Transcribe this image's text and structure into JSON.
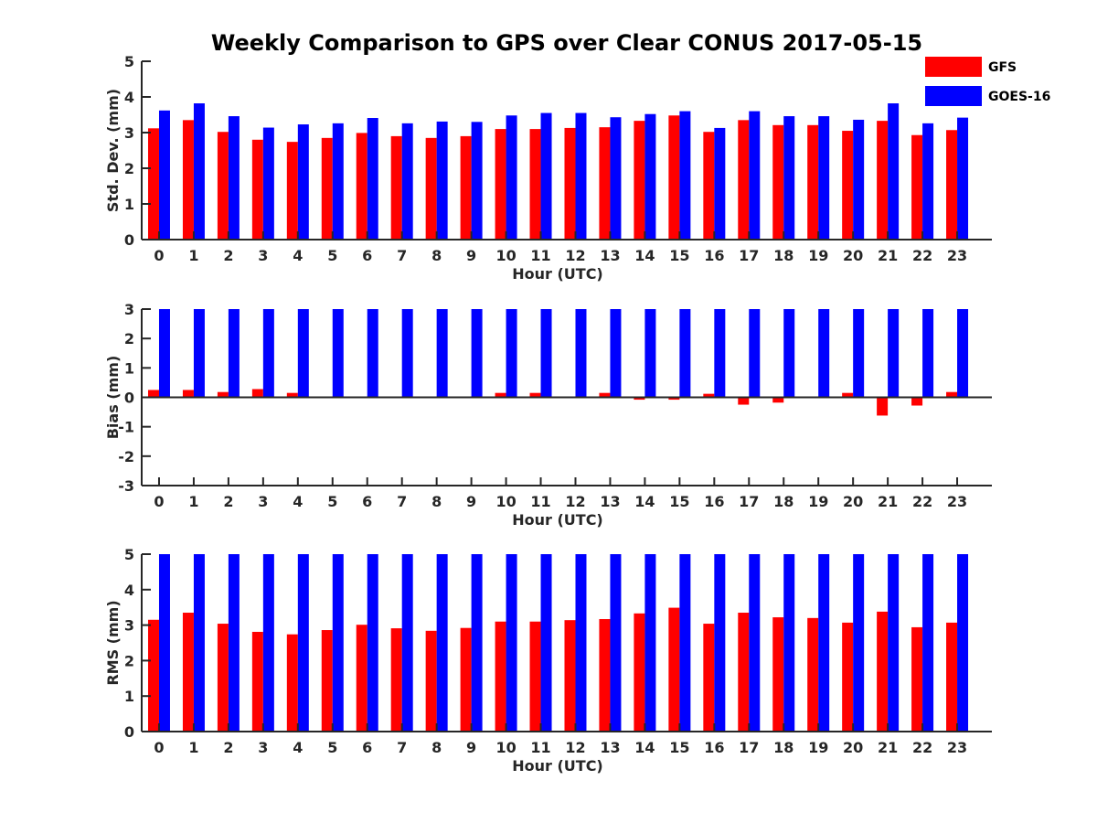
{
  "title": "Weekly Comparison to GPS over Clear CONUS 2017-05-15",
  "legend": {
    "items": [
      {
        "label": "GFS",
        "color": "#ff0000"
      },
      {
        "label": "GOES-16",
        "color": "#0000ff"
      }
    ],
    "position": "top-right"
  },
  "chart_data": [
    {
      "type": "bar",
      "xlabel": "Hour (UTC)",
      "ylabel": "Std. Dev. (mm)",
      "ylim": [
        0,
        5
      ],
      "yticks": [
        0,
        1,
        2,
        3,
        4,
        5
      ],
      "categories": [
        "0",
        "1",
        "2",
        "3",
        "4",
        "5",
        "6",
        "7",
        "8",
        "9",
        "10",
        "11",
        "12",
        "13",
        "14",
        "15",
        "16",
        "17",
        "18",
        "19",
        "20",
        "21",
        "22",
        "23"
      ],
      "series": [
        {
          "name": "GFS",
          "values": [
            3.12,
            3.35,
            3.02,
            2.8,
            2.74,
            2.85,
            2.99,
            2.9,
            2.85,
            2.9,
            3.1,
            3.1,
            3.13,
            3.15,
            3.33,
            3.48,
            3.02,
            3.35,
            3.21,
            3.21,
            3.05,
            3.33,
            2.93,
            3.07
          ]
        },
        {
          "name": "GOES-16",
          "values": [
            3.62,
            3.82,
            3.46,
            3.14,
            3.23,
            3.26,
            3.41,
            3.26,
            3.31,
            3.3,
            3.48,
            3.55,
            3.55,
            3.43,
            3.52,
            3.6,
            3.13,
            3.6,
            3.46,
            3.46,
            3.36,
            3.82,
            3.26,
            3.42
          ]
        }
      ]
    },
    {
      "type": "bar",
      "xlabel": "Hour (UTC)",
      "ylabel": "Bias (mm)",
      "ylim": [
        -3,
        3
      ],
      "yticks": [
        -3,
        -2,
        -1,
        0,
        1,
        2,
        3
      ],
      "categories": [
        "0",
        "1",
        "2",
        "3",
        "4",
        "5",
        "6",
        "7",
        "8",
        "9",
        "10",
        "11",
        "12",
        "13",
        "14",
        "15",
        "16",
        "17",
        "18",
        "19",
        "20",
        "21",
        "22",
        "23"
      ],
      "series": [
        {
          "name": "GFS",
          "values": [
            0.25,
            0.25,
            0.18,
            0.28,
            0.15,
            0.0,
            0.03,
            0.03,
            0.0,
            0.0,
            0.15,
            0.15,
            0.0,
            0.15,
            -0.08,
            -0.08,
            0.12,
            -0.25,
            -0.18,
            0.0,
            0.15,
            -0.62,
            -0.28,
            0.18
          ]
        },
        {
          "name": "GOES-16",
          "values": [
            3,
            3,
            3,
            3,
            3,
            3,
            3,
            3,
            3,
            3,
            3,
            3,
            3,
            3,
            3,
            3,
            3,
            3,
            3,
            3,
            3,
            3,
            3,
            3
          ]
        }
      ]
    },
    {
      "type": "bar",
      "xlabel": "Hour (UTC)",
      "ylabel": "RMS (mm)",
      "ylim": [
        0,
        5
      ],
      "yticks": [
        0,
        1,
        2,
        3,
        4,
        5
      ],
      "categories": [
        "0",
        "1",
        "2",
        "3",
        "4",
        "5",
        "6",
        "7",
        "8",
        "9",
        "10",
        "11",
        "12",
        "13",
        "14",
        "15",
        "16",
        "17",
        "18",
        "19",
        "20",
        "21",
        "22",
        "23"
      ],
      "series": [
        {
          "name": "GFS",
          "values": [
            3.15,
            3.35,
            3.04,
            2.81,
            2.74,
            2.86,
            3.01,
            2.91,
            2.84,
            2.92,
            3.1,
            3.1,
            3.14,
            3.17,
            3.33,
            3.49,
            3.04,
            3.35,
            3.22,
            3.2,
            3.07,
            3.38,
            2.94,
            3.07
          ]
        },
        {
          "name": "GOES-16",
          "values": [
            5,
            5,
            5,
            5,
            5,
            5,
            5,
            5,
            5,
            5,
            5,
            5,
            5,
            5,
            5,
            5,
            5,
            5,
            5,
            5,
            5,
            5,
            5,
            5
          ]
        }
      ]
    }
  ]
}
